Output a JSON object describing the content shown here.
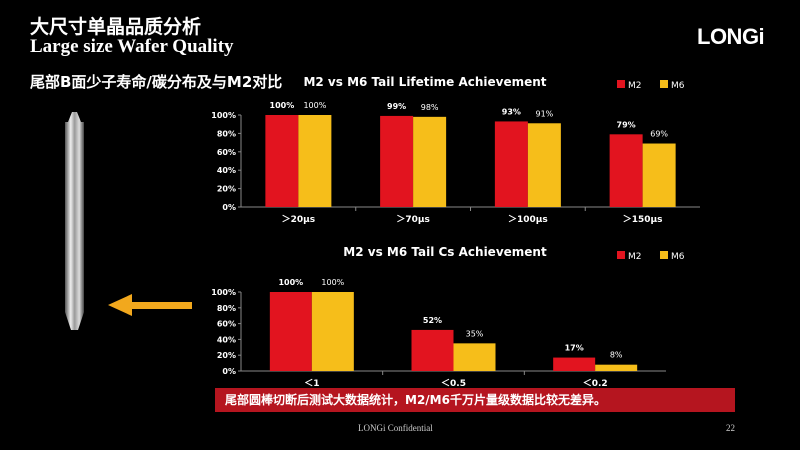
{
  "slide": {
    "title_cn": "大尺寸单晶品质分析",
    "title_en": "Large size Wafer Quality",
    "subtitle": "尾部B面少子寿命/碳分布及与M2对比",
    "logo": "LONGi",
    "banner": "尾部圆棒切断后测试大数据统计，M2/M6千万片量级数据比较无差异。",
    "footer": "LONGi Confidential",
    "page_number": "22",
    "colors": {
      "M2": "#e2141f",
      "M6": "#f6be1a",
      "banner": "#b5151f"
    },
    "icons": [
      "silicon-ingot-image",
      "left-arrow-icon"
    ]
  },
  "chart_data": [
    {
      "type": "bar",
      "title": "M2 vs M6 Tail Lifetime Achievement",
      "categories": [
        "＞20μs",
        "＞70μs",
        "＞100μs",
        "＞150μs"
      ],
      "series": [
        {
          "name": "M2",
          "values": [
            100,
            99,
            93,
            79
          ],
          "labels": [
            "100%",
            "99%",
            "93%",
            "79%"
          ]
        },
        {
          "name": "M6",
          "values": [
            100,
            98,
            91,
            69
          ],
          "labels": [
            "100%",
            "98%",
            "91%",
            "69%"
          ]
        }
      ],
      "ylim": [
        0,
        100
      ],
      "yticks": [
        "0%",
        "20%",
        "40%",
        "60%",
        "80%",
        "100%"
      ],
      "legend": "top-right",
      "grid": false
    },
    {
      "type": "bar",
      "title": "M2 vs M6 Tail Cs Achievement",
      "categories": [
        "＜1",
        "＜0.5",
        "＜0.2"
      ],
      "series": [
        {
          "name": "M2",
          "values": [
            100,
            52,
            17
          ],
          "labels": [
            "100%",
            "52%",
            "17%"
          ]
        },
        {
          "name": "M6",
          "values": [
            100,
            35,
            8
          ],
          "labels": [
            "100%",
            "35%",
            "8%"
          ]
        }
      ],
      "ylim": [
        0,
        100
      ],
      "yticks": [
        "0%",
        "20%",
        "40%",
        "60%",
        "80%",
        "100%"
      ],
      "legend": "top-right",
      "grid": false
    }
  ]
}
